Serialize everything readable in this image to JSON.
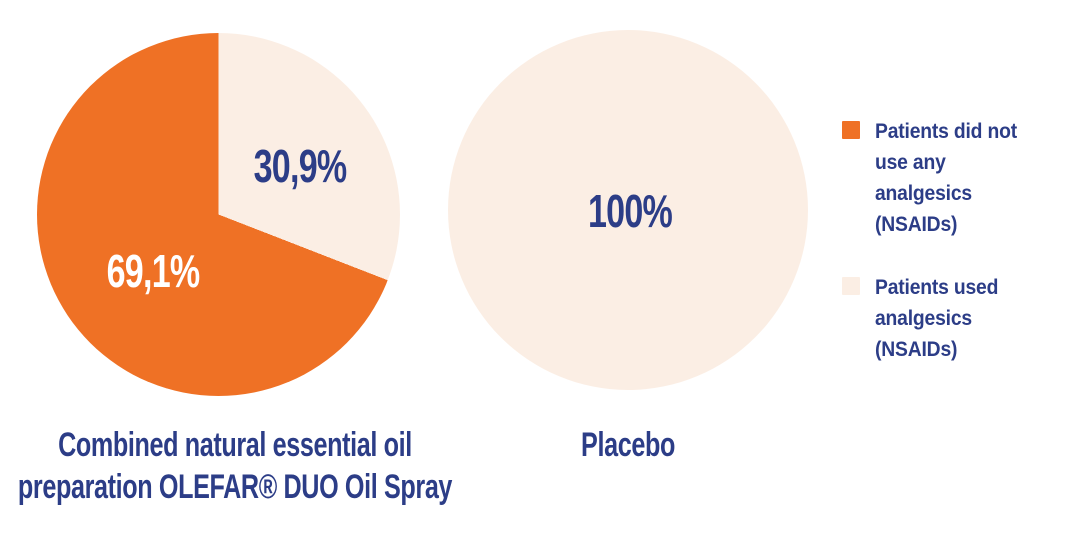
{
  "page": {
    "background": "#FFFFFF"
  },
  "colors": {
    "orange": "#EF7125",
    "cream": "#FBEEE4",
    "navy": "#2C3D87",
    "white": "#FFFFFF"
  },
  "chart_data": [
    {
      "type": "pie",
      "title": "Combined natural essential oil\npreparation OLEFAR® DUO Oil Spray",
      "start_angle_deg": 0,
      "direction": "clockwise",
      "slices": [
        {
          "label": "Patients used analgesics (NSAIDs)",
          "value": 30.9,
          "display": "30,9%",
          "color": "#FBEEE4",
          "label_color": "#2C3D87"
        },
        {
          "label": "Patients did not use any analgesics (NSAIDs)",
          "value": 69.1,
          "display": "69,1%",
          "color": "#EF7125",
          "label_color": "#FFFFFF"
        }
      ]
    },
    {
      "type": "pie",
      "title": "Placebo",
      "start_angle_deg": 0,
      "direction": "clockwise",
      "slices": [
        {
          "label": "Patients used analgesics (NSAIDs)",
          "value": 100,
          "display": "100%",
          "color": "#FBEEE4",
          "label_color": "#2C3D87"
        }
      ]
    }
  ],
  "legend": {
    "position": "right",
    "items": [
      {
        "label": "Patients did not\nuse any\nanalgesics (NSAIDs)",
        "color": "#EF7125"
      },
      {
        "label": "Patients used\nanalgesics\n(NSAIDs)",
        "color": "#FBEEE4"
      }
    ]
  }
}
